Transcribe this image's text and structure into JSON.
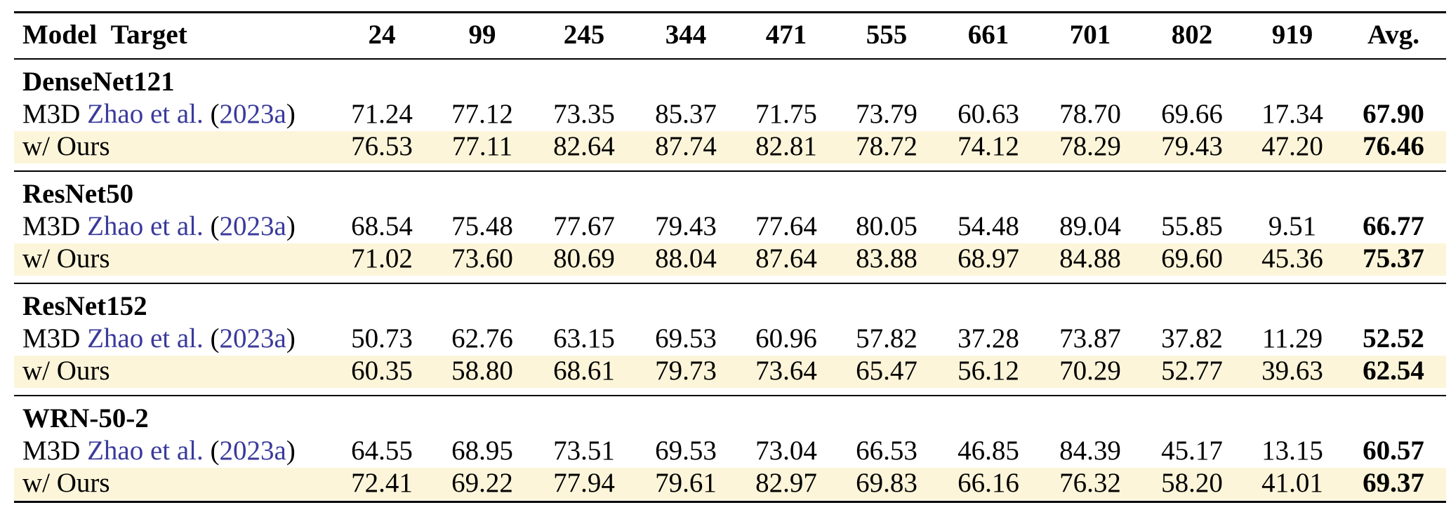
{
  "table": {
    "header": {
      "model": "Model",
      "target": "Target",
      "columns": [
        "24",
        "99",
        "245",
        "344",
        "471",
        "555",
        "661",
        "701",
        "802",
        "919",
        "Avg."
      ]
    },
    "groups": [
      {
        "name": "DenseNet121",
        "rows": [
          {
            "method": "M3D",
            "cite_author": "Zhao et al.",
            "cite_open": "(",
            "cite_year": "2023a",
            "cite_close": ")",
            "values": [
              "71.24",
              "77.12",
              "73.35",
              "85.37",
              "71.75",
              "73.79",
              "60.63",
              "78.70",
              "69.66",
              "17.34",
              "67.90"
            ]
          },
          {
            "method": "w/ Ours",
            "values": [
              "76.53",
              "77.11",
              "82.64",
              "87.74",
              "82.81",
              "78.72",
              "74.12",
              "78.29",
              "79.43",
              "47.20",
              "76.46"
            ]
          }
        ]
      },
      {
        "name": "ResNet50",
        "rows": [
          {
            "method": "M3D",
            "cite_author": "Zhao et al.",
            "cite_open": "(",
            "cite_year": "2023a",
            "cite_close": ")",
            "values": [
              "68.54",
              "75.48",
              "77.67",
              "79.43",
              "77.64",
              "80.05",
              "54.48",
              "89.04",
              "55.85",
              "9.51",
              "66.77"
            ]
          },
          {
            "method": "w/ Ours",
            "values": [
              "71.02",
              "73.60",
              "80.69",
              "88.04",
              "87.64",
              "83.88",
              "68.97",
              "84.88",
              "69.60",
              "45.36",
              "75.37"
            ]
          }
        ]
      },
      {
        "name": "ResNet152",
        "rows": [
          {
            "method": "M3D",
            "cite_author": "Zhao et al.",
            "cite_open": "(",
            "cite_year": "2023a",
            "cite_close": ")",
            "values": [
              "50.73",
              "62.76",
              "63.15",
              "69.53",
              "60.96",
              "57.82",
              "37.28",
              "73.87",
              "37.82",
              "11.29",
              "52.52"
            ]
          },
          {
            "method": "w/ Ours",
            "values": [
              "60.35",
              "58.80",
              "68.61",
              "79.73",
              "73.64",
              "65.47",
              "56.12",
              "70.29",
              "52.77",
              "39.63",
              "62.54"
            ]
          }
        ]
      },
      {
        "name": "WRN-50-2",
        "rows": [
          {
            "method": "M3D",
            "cite_author": "Zhao et al.",
            "cite_open": "(",
            "cite_year": "2023a",
            "cite_close": ")",
            "values": [
              "64.55",
              "68.95",
              "73.51",
              "69.53",
              "73.04",
              "66.53",
              "46.85",
              "84.39",
              "45.17",
              "13.15",
              "60.57"
            ]
          },
          {
            "method": "w/ Ours",
            "values": [
              "72.41",
              "69.22",
              "77.94",
              "79.61",
              "82.97",
              "69.83",
              "66.16",
              "76.32",
              "58.20",
              "41.01",
              "69.37"
            ]
          }
        ]
      }
    ]
  }
}
